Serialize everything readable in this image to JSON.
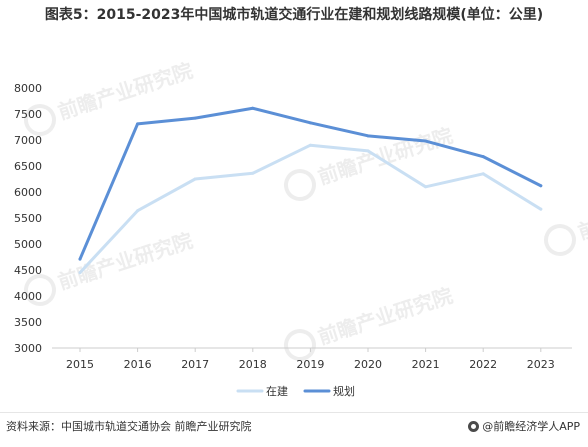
{
  "title": "图表5：2015-2023年中国城市轨道交通行业在建和规划线路规模(单位：公里)",
  "footer": {
    "source": "资料来源：中国城市轨道交通协会 前瞻产业研究院",
    "brand": "@前瞻经济学人APP"
  },
  "watermark": {
    "text": "前瞻产业研究院"
  },
  "colors": {
    "series_zaijian": "#c9dff3",
    "series_guihua": "#5b8fd6",
    "axis": "#cccccc",
    "tick_text": "#333333"
  },
  "chart_data": {
    "type": "line",
    "title": "图表5：2015-2023年中国城市轨道交通行业在建和规划线路规模(单位：公里)",
    "xlabel": "",
    "ylabel": "",
    "categories": [
      "2015",
      "2016",
      "2017",
      "2018",
      "2019",
      "2020",
      "2021",
      "2022",
      "2023"
    ],
    "yticks": [
      3000,
      3500,
      4000,
      4500,
      5000,
      5500,
      6000,
      6500,
      7000,
      7500,
      8000
    ],
    "ylim": [
      3000,
      8000
    ],
    "grid": false,
    "legend_position": "bottom",
    "series": [
      {
        "name": "在建",
        "values": [
          4450,
          5640,
          6250,
          6360,
          6900,
          6790,
          6100,
          6350,
          5670
        ]
      },
      {
        "name": "规划",
        "values": [
          4710,
          7310,
          7420,
          7610,
          7330,
          7080,
          6980,
          6680,
          6120
        ]
      }
    ]
  }
}
